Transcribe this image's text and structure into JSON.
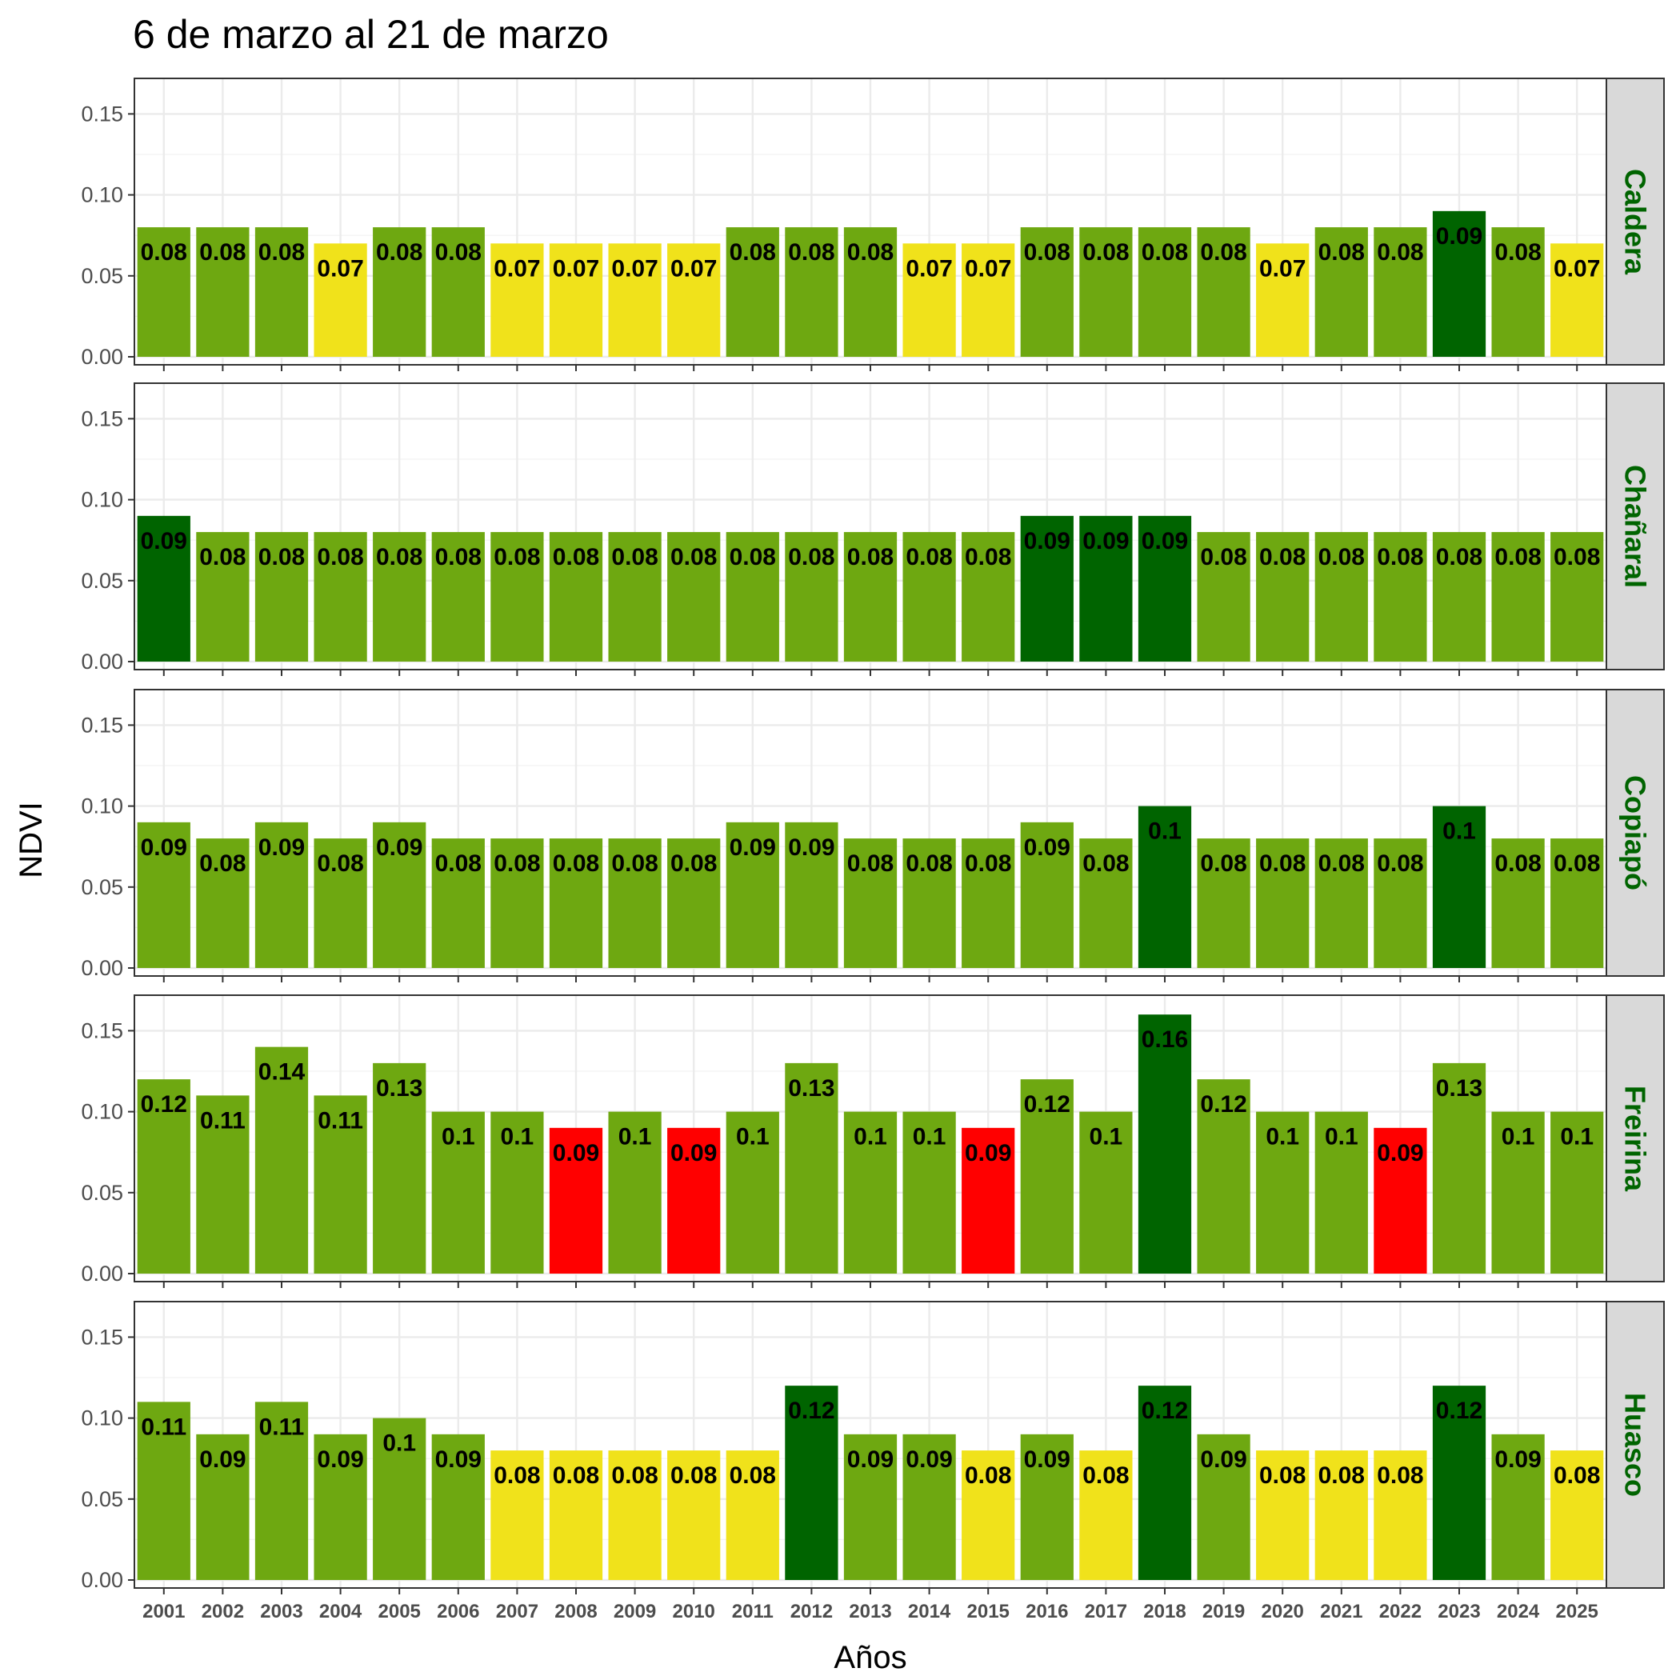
{
  "chart_data": {
    "type": "bar",
    "title": "6 de marzo al 21 de marzo",
    "xlabel": "Años",
    "ylabel": "NDVI",
    "ylim": [
      0,
      0.167
    ],
    "y_ticks": [
      "0.00",
      "0.05",
      "0.10",
      "0.15"
    ],
    "y_tick_values": [
      0,
      0.05,
      0.1,
      0.15
    ],
    "grid": true,
    "categories": [
      "2001",
      "2002",
      "2003",
      "2004",
      "2005",
      "2006",
      "2007",
      "2008",
      "2009",
      "2010",
      "2011",
      "2012",
      "2013",
      "2014",
      "2015",
      "2016",
      "2017",
      "2018",
      "2019",
      "2020",
      "2021",
      "2022",
      "2023",
      "2024",
      "2025"
    ],
    "colors": {
      "yellow": "#f0e21b",
      "green": "#6ea811",
      "darkgreen": "#006400",
      "red": "#ff0000"
    },
    "strip_text_color": "#006400",
    "panels": [
      {
        "name": "Caldera",
        "values": [
          0.08,
          0.08,
          0.08,
          0.07,
          0.08,
          0.08,
          0.07,
          0.07,
          0.07,
          0.07,
          0.08,
          0.08,
          0.08,
          0.07,
          0.07,
          0.08,
          0.08,
          0.08,
          0.08,
          0.07,
          0.08,
          0.08,
          0.09,
          0.08,
          0.07
        ],
        "labels": [
          "0.08",
          "0.08",
          "0.08",
          "0.07",
          "0.08",
          "0.08",
          "0.07",
          "0.07",
          "0.07",
          "0.07",
          "0.08",
          "0.08",
          "0.08",
          "0.07",
          "0.07",
          "0.08",
          "0.08",
          "0.08",
          "0.08",
          "0.07",
          "0.08",
          "0.08",
          "0.09",
          "0.08",
          "0.07"
        ],
        "classes": [
          "green",
          "green",
          "green",
          "yellow",
          "green",
          "green",
          "yellow",
          "yellow",
          "yellow",
          "yellow",
          "green",
          "green",
          "green",
          "yellow",
          "yellow",
          "green",
          "green",
          "green",
          "green",
          "yellow",
          "green",
          "green",
          "darkgreen",
          "green",
          "yellow"
        ]
      },
      {
        "name": "Chañaral",
        "values": [
          0.09,
          0.08,
          0.08,
          0.08,
          0.08,
          0.08,
          0.08,
          0.08,
          0.08,
          0.08,
          0.08,
          0.08,
          0.08,
          0.08,
          0.08,
          0.09,
          0.09,
          0.09,
          0.08,
          0.08,
          0.08,
          0.08,
          0.08,
          0.08,
          0.08
        ],
        "labels": [
          "0.09",
          "0.08",
          "0.08",
          "0.08",
          "0.08",
          "0.08",
          "0.08",
          "0.08",
          "0.08",
          "0.08",
          "0.08",
          "0.08",
          "0.08",
          "0.08",
          "0.08",
          "0.09",
          "0.09",
          "0.09",
          "0.08",
          "0.08",
          "0.08",
          "0.08",
          "0.08",
          "0.08",
          "0.08"
        ],
        "classes": [
          "darkgreen",
          "green",
          "green",
          "green",
          "green",
          "green",
          "green",
          "green",
          "green",
          "green",
          "green",
          "green",
          "green",
          "green",
          "green",
          "darkgreen",
          "darkgreen",
          "darkgreen",
          "green",
          "green",
          "green",
          "green",
          "green",
          "green",
          "green"
        ]
      },
      {
        "name": "Copiapó",
        "values": [
          0.09,
          0.08,
          0.09,
          0.08,
          0.09,
          0.08,
          0.08,
          0.08,
          0.08,
          0.08,
          0.09,
          0.09,
          0.08,
          0.08,
          0.08,
          0.09,
          0.08,
          0.1,
          0.08,
          0.08,
          0.08,
          0.08,
          0.1,
          0.08,
          0.08
        ],
        "labels": [
          "0.09",
          "0.08",
          "0.09",
          "0.08",
          "0.09",
          "0.08",
          "0.08",
          "0.08",
          "0.08",
          "0.08",
          "0.09",
          "0.09",
          "0.08",
          "0.08",
          "0.08",
          "0.09",
          "0.08",
          "0.1",
          "0.08",
          "0.08",
          "0.08",
          "0.08",
          "0.1",
          "0.08",
          "0.08"
        ],
        "classes": [
          "green",
          "green",
          "green",
          "green",
          "green",
          "green",
          "green",
          "green",
          "green",
          "green",
          "green",
          "green",
          "green",
          "green",
          "green",
          "green",
          "green",
          "darkgreen",
          "green",
          "green",
          "green",
          "green",
          "darkgreen",
          "green",
          "green"
        ]
      },
      {
        "name": "Freirina",
        "values": [
          0.12,
          0.11,
          0.14,
          0.11,
          0.13,
          0.1,
          0.1,
          0.09,
          0.1,
          0.09,
          0.1,
          0.13,
          0.1,
          0.1,
          0.09,
          0.12,
          0.1,
          0.16,
          0.12,
          0.1,
          0.1,
          0.09,
          0.13,
          0.1,
          0.1
        ],
        "labels": [
          "0.12",
          "0.11",
          "0.14",
          "0.11",
          "0.13",
          "0.1",
          "0.1",
          "0.09",
          "0.1",
          "0.09",
          "0.1",
          "0.13",
          "0.1",
          "0.1",
          "0.09",
          "0.12",
          "0.1",
          "0.16",
          "0.12",
          "0.1",
          "0.1",
          "0.09",
          "0.13",
          "0.1",
          "0.1"
        ],
        "classes": [
          "green",
          "green",
          "green",
          "green",
          "green",
          "green",
          "green",
          "red",
          "green",
          "red",
          "green",
          "green",
          "green",
          "green",
          "red",
          "green",
          "green",
          "darkgreen",
          "green",
          "green",
          "green",
          "red",
          "green",
          "green",
          "green"
        ]
      },
      {
        "name": "Huasco",
        "values": [
          0.11,
          0.09,
          0.11,
          0.09,
          0.1,
          0.09,
          0.08,
          0.08,
          0.08,
          0.08,
          0.08,
          0.12,
          0.09,
          0.09,
          0.08,
          0.09,
          0.08,
          0.12,
          0.09,
          0.08,
          0.08,
          0.08,
          0.12,
          0.09,
          0.08
        ],
        "labels": [
          "0.11",
          "0.09",
          "0.11",
          "0.09",
          "0.1",
          "0.09",
          "0.08",
          "0.08",
          "0.08",
          "0.08",
          "0.08",
          "0.12",
          "0.09",
          "0.09",
          "0.08",
          "0.09",
          "0.08",
          "0.12",
          "0.09",
          "0.08",
          "0.08",
          "0.08",
          "0.12",
          "0.09",
          "0.08"
        ],
        "classes": [
          "green",
          "green",
          "green",
          "green",
          "green",
          "green",
          "yellow",
          "yellow",
          "yellow",
          "yellow",
          "yellow",
          "darkgreen",
          "green",
          "green",
          "yellow",
          "green",
          "yellow",
          "darkgreen",
          "green",
          "yellow",
          "yellow",
          "yellow",
          "darkgreen",
          "green",
          "yellow"
        ]
      }
    ]
  }
}
